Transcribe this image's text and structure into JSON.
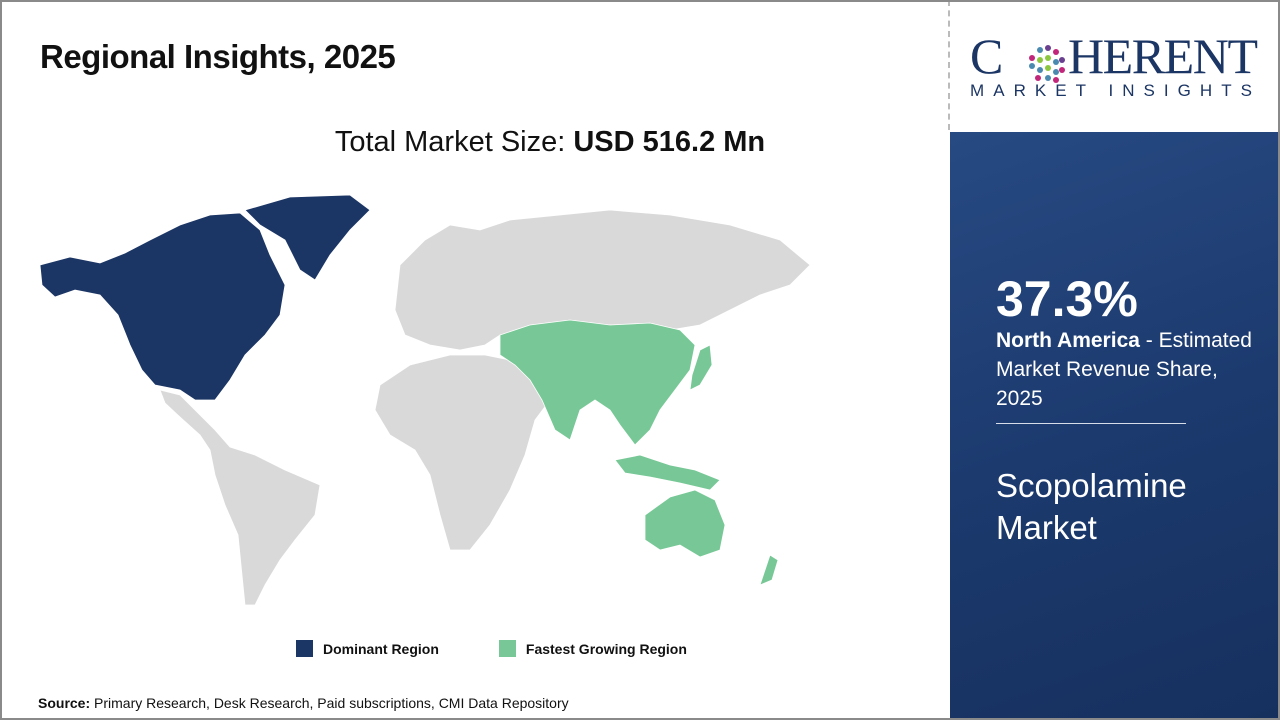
{
  "header": {
    "title": "Regional Insights, 2025"
  },
  "total_market": {
    "label": "Total Market Size: ",
    "value": "USD 516.2 Mn"
  },
  "logo": {
    "word": "COHERENT",
    "tagline": "MARKET INSIGHTS"
  },
  "colors": {
    "dominant": "#1b3564",
    "fastest": "#77c896",
    "other": "#d9d9d9",
    "panel": "#1c3a6e"
  },
  "map": {
    "dominant_region": "North America",
    "fastest_growing_region": "Asia Pacific"
  },
  "legend": [
    {
      "label": "Dominant Region",
      "color": "#1b3564"
    },
    {
      "label": "Fastest Growing Region",
      "color": "#77c896"
    }
  ],
  "panel": {
    "share": "37.3%",
    "share_percent": 37.3,
    "region": "North America",
    "desc": " - Estimated Market Revenue Share, 2025",
    "market": "Scopolamine Market"
  },
  "source": {
    "label": "Source:",
    "text": " Primary Research, Desk Research, Paid subscriptions, CMI Data Repository"
  }
}
